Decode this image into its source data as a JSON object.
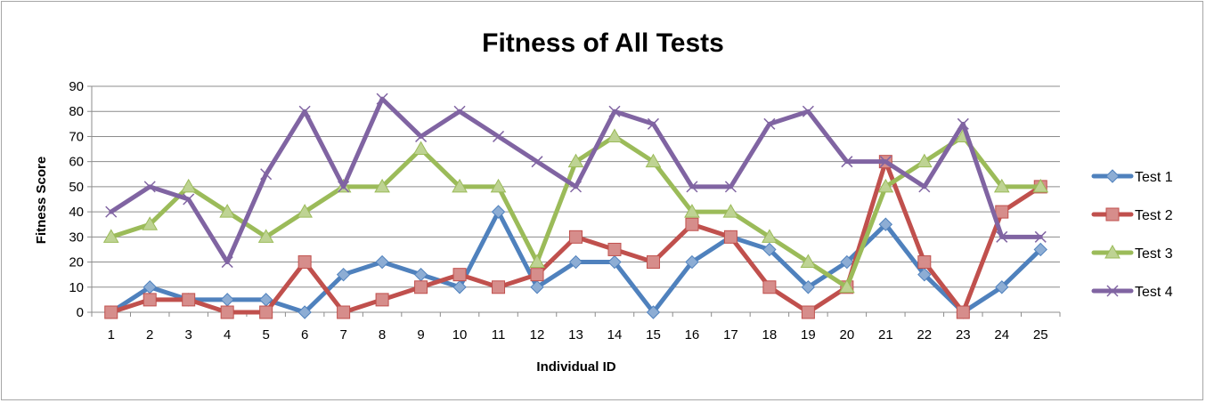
{
  "chart_data": {
    "type": "line",
    "title": "Fitness of All Tests",
    "xlabel": "Individual ID",
    "ylabel": "Fitness Score",
    "ylim": [
      0,
      90
    ],
    "yticks": [
      0,
      10,
      20,
      30,
      40,
      50,
      60,
      70,
      80,
      90
    ],
    "grid": "horizontal",
    "legend_position": "right",
    "x": [
      "1",
      "2",
      "3",
      "4",
      "5",
      "6",
      "7",
      "8",
      "9",
      "10",
      "11",
      "12",
      "13",
      "14",
      "15",
      "16",
      "17",
      "18",
      "19",
      "20",
      "21",
      "22",
      "23",
      "24",
      "25"
    ],
    "series": [
      {
        "name": "Test 1",
        "color": "#4f81bd",
        "marker": "diamond",
        "values": [
          0,
          10,
          5,
          5,
          5,
          0,
          15,
          20,
          15,
          10,
          40,
          10,
          20,
          20,
          0,
          20,
          30,
          25,
          10,
          20,
          35,
          15,
          0,
          10,
          25
        ]
      },
      {
        "name": "Test 2",
        "color": "#c0504d",
        "marker": "square",
        "values": [
          0,
          5,
          5,
          0,
          0,
          20,
          0,
          5,
          10,
          15,
          10,
          15,
          30,
          25,
          20,
          35,
          30,
          10,
          0,
          10,
          60,
          20,
          0,
          40,
          50
        ]
      },
      {
        "name": "Test 3",
        "color": "#9bbb59",
        "marker": "triangle",
        "values": [
          30,
          35,
          50,
          40,
          30,
          40,
          50,
          50,
          65,
          50,
          50,
          20,
          60,
          70,
          60,
          40,
          40,
          30,
          20,
          10,
          50,
          60,
          70,
          50,
          50
        ]
      },
      {
        "name": "Test 4",
        "color": "#8064a2",
        "marker": "x",
        "values": [
          40,
          50,
          45,
          20,
          55,
          80,
          50,
          85,
          70,
          80,
          70,
          60,
          50,
          80,
          75,
          50,
          50,
          75,
          80,
          60,
          60,
          50,
          75,
          30,
          30
        ]
      }
    ]
  }
}
